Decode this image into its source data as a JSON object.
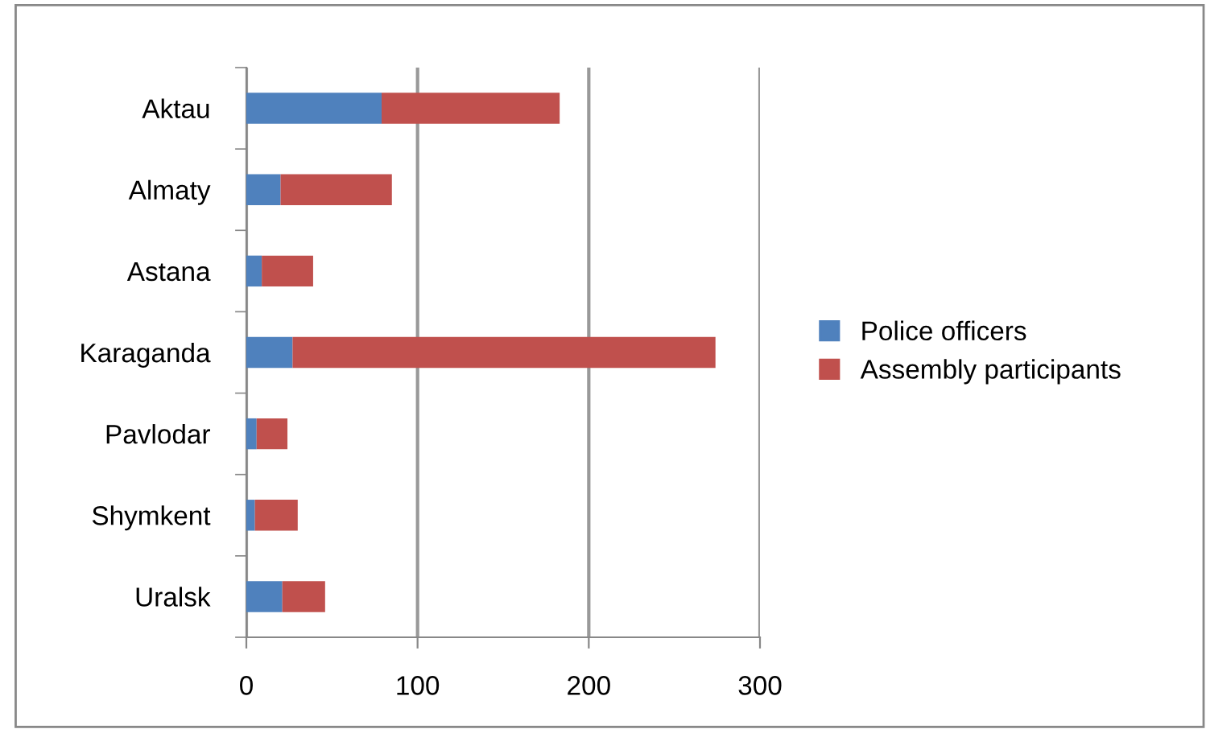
{
  "chart_data": {
    "type": "bar",
    "orientation": "horizontal",
    "stacked": true,
    "categories": [
      "Aktau",
      "Almaty",
      "Astana",
      "Karaganda",
      "Pavlodar",
      "Shymkent",
      "Uralsk"
    ],
    "series": [
      {
        "name": "Police officers",
        "color": "#4f81bd",
        "values": [
          79,
          20,
          9,
          27,
          6,
          5,
          21
        ]
      },
      {
        "name": "Assembly participants",
        "color": "#c0504d",
        "values": [
          104,
          65,
          30,
          247,
          18,
          25,
          25
        ]
      }
    ],
    "xlim": [
      0,
      300
    ],
    "xticks": [
      0,
      100,
      200,
      300
    ],
    "grid": "x",
    "legend": "right"
  }
}
